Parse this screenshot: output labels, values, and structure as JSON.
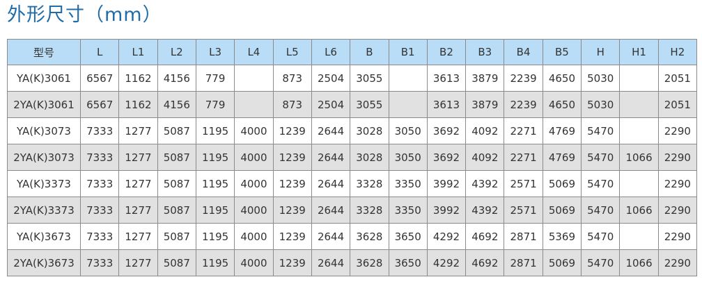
{
  "title": "外形尺寸（mm）",
  "table": {
    "headers": [
      "型号",
      "L",
      "L1",
      "L2",
      "L3",
      "L4",
      "L5",
      "L6",
      "B",
      "B1",
      "B2",
      "B3",
      "B4",
      "B5",
      "H",
      "H1",
      "H2"
    ],
    "rows": [
      [
        "YA(K)3061",
        "6567",
        "1162",
        "4156",
        "779",
        "",
        "873",
        "2504",
        "3055",
        "",
        "3613",
        "3879",
        "2239",
        "4650",
        "5030",
        "",
        "2051"
      ],
      [
        "2YA(K)3061",
        "6567",
        "1162",
        "4156",
        "779",
        "",
        "873",
        "2504",
        "3055",
        "",
        "3613",
        "3879",
        "2239",
        "4650",
        "5030",
        "",
        "2051"
      ],
      [
        "YA(K)3073",
        "7333",
        "1277",
        "5087",
        "1195",
        "4000",
        "1239",
        "2644",
        "3028",
        "3050",
        "3692",
        "4092",
        "2271",
        "4769",
        "5470",
        "",
        "2290"
      ],
      [
        "2YA(K)3073",
        "7333",
        "1277",
        "5087",
        "1195",
        "4000",
        "1239",
        "2644",
        "3028",
        "3050",
        "3692",
        "4092",
        "2271",
        "4769",
        "5470",
        "1066",
        "2290"
      ],
      [
        "YA(K)3373",
        "7333",
        "1277",
        "5087",
        "1195",
        "4000",
        "1239",
        "2644",
        "3328",
        "3350",
        "3992",
        "4392",
        "2571",
        "5069",
        "5470",
        "",
        "2290"
      ],
      [
        "2YA(K)3373",
        "7333",
        "1277",
        "5087",
        "1195",
        "4000",
        "1239",
        "2644",
        "3328",
        "3350",
        "3992",
        "4392",
        "2571",
        "5069",
        "5470",
        "1066",
        "2290"
      ],
      [
        "YA(K)3673",
        "7333",
        "1277",
        "5087",
        "1195",
        "4000",
        "1239",
        "2644",
        "3628",
        "3650",
        "4292",
        "4692",
        "2871",
        "5369",
        "5470",
        "",
        "2290"
      ],
      [
        "2YA(K)3673",
        "7333",
        "1277",
        "5087",
        "1195",
        "4000",
        "1239",
        "2644",
        "3628",
        "3650",
        "4292",
        "4692",
        "2871",
        "5069",
        "5470",
        "1066",
        "2290"
      ]
    ]
  }
}
